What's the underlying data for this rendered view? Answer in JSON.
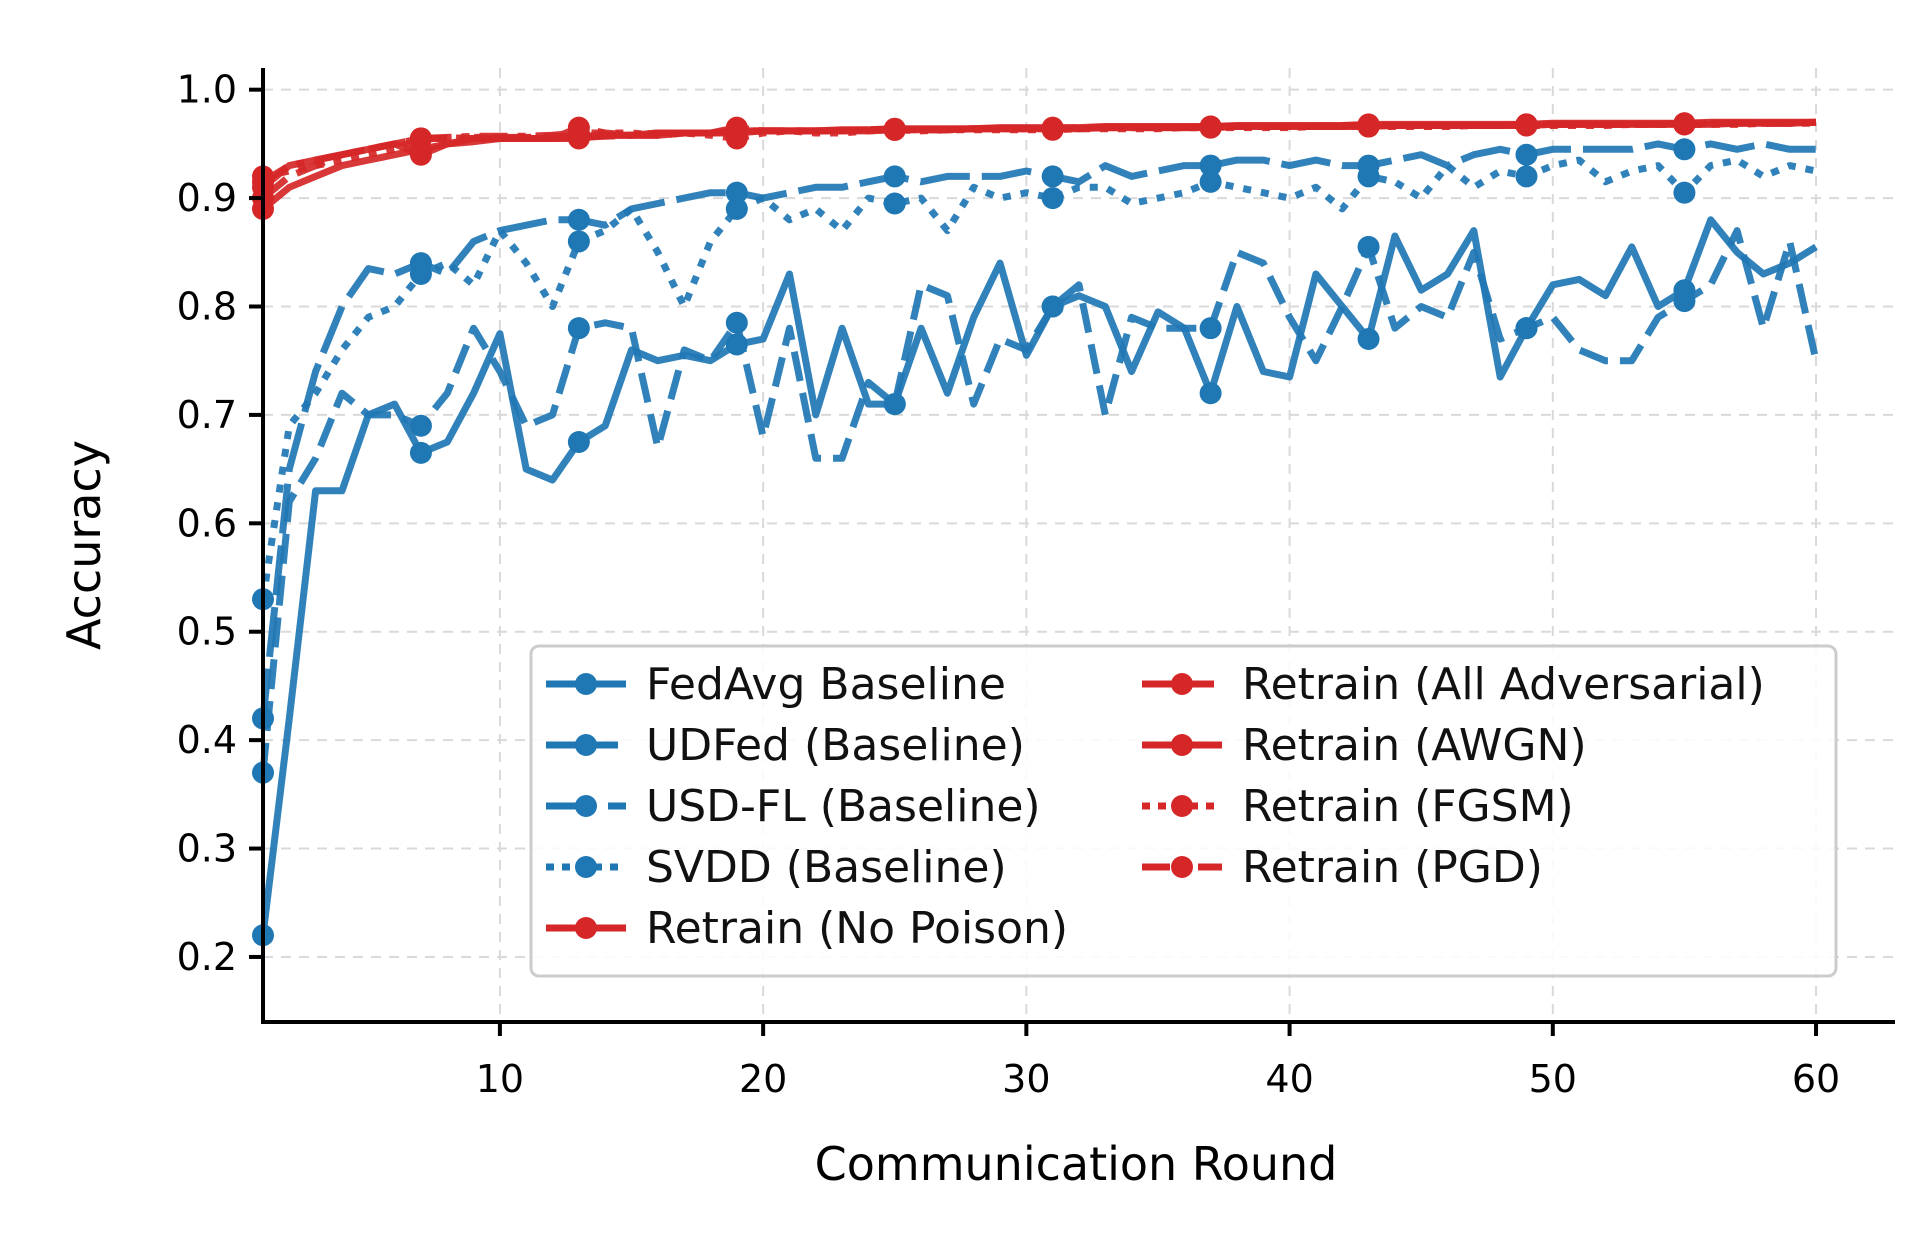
{
  "chart_data": {
    "type": "line",
    "title": "",
    "xlabel": "Communication Round",
    "ylabel": "Accuracy",
    "xlim": [
      1,
      63
    ],
    "ylim": [
      0.14,
      1.02
    ],
    "xticks": [
      10,
      20,
      30,
      40,
      50,
      60
    ],
    "yticks": [
      0.2,
      0.3,
      0.4,
      0.5,
      0.6,
      0.7,
      0.8,
      0.9,
      1.0
    ],
    "xtick_labels": [
      "10",
      "20",
      "30",
      "40",
      "50",
      "60"
    ],
    "ytick_labels": [
      "0.2",
      "0.3",
      "0.4",
      "0.5",
      "0.6",
      "0.7",
      "0.8",
      "0.9",
      "1.0"
    ],
    "grid": true,
    "legend_position": "lower-right",
    "marker_every": 6,
    "series": [
      {
        "name": "FedAvg Baseline",
        "color": "#1f77b4",
        "dash": "solid",
        "values": [
          0.22,
          0.42,
          0.63,
          0.63,
          0.7,
          0.71,
          0.665,
          0.675,
          0.72,
          0.775,
          0.65,
          0.64,
          0.675,
          0.69,
          0.76,
          0.75,
          0.755,
          0.75,
          0.765,
          0.77,
          0.83,
          0.7,
          0.78,
          0.71,
          0.71,
          0.78,
          0.72,
          0.79,
          0.84,
          0.755,
          0.8,
          0.81,
          0.8,
          0.74,
          0.795,
          0.78,
          0.72,
          0.8,
          0.74,
          0.735,
          0.83,
          0.8,
          0.77,
          0.865,
          0.815,
          0.83,
          0.87,
          0.735,
          0.78,
          0.82,
          0.825,
          0.81,
          0.855,
          0.8,
          0.815,
          0.88,
          0.85,
          0.83,
          0.84,
          0.855
        ]
      },
      {
        "name": "UDFed (Baseline)",
        "color": "#1f77b4",
        "dash": "dashed",
        "values": [
          0.37,
          0.62,
          0.66,
          0.72,
          0.7,
          0.7,
          0.69,
          0.72,
          0.78,
          0.74,
          0.69,
          0.7,
          0.78,
          0.785,
          0.78,
          0.67,
          0.76,
          0.75,
          0.785,
          0.68,
          0.78,
          0.66,
          0.66,
          0.73,
          0.71,
          0.82,
          0.81,
          0.71,
          0.77,
          0.76,
          0.8,
          0.82,
          0.7,
          0.79,
          0.78,
          0.78,
          0.78,
          0.85,
          0.84,
          0.79,
          0.75,
          0.8,
          0.855,
          0.78,
          0.8,
          0.79,
          0.85,
          0.77,
          0.78,
          0.79,
          0.76,
          0.75,
          0.75,
          0.79,
          0.805,
          0.82,
          0.87,
          0.78,
          0.86,
          0.75
        ]
      },
      {
        "name": "USD-FL (Baseline)",
        "color": "#1f77b4",
        "dash": "longdash",
        "values": [
          0.42,
          0.65,
          0.74,
          0.8,
          0.835,
          0.83,
          0.84,
          0.83,
          0.86,
          0.87,
          0.875,
          0.88,
          0.88,
          0.875,
          0.89,
          0.895,
          0.9,
          0.905,
          0.905,
          0.9,
          0.905,
          0.91,
          0.91,
          0.915,
          0.92,
          0.915,
          0.92,
          0.92,
          0.92,
          0.925,
          0.92,
          0.915,
          0.93,
          0.92,
          0.925,
          0.93,
          0.93,
          0.935,
          0.935,
          0.93,
          0.935,
          0.93,
          0.93,
          0.935,
          0.94,
          0.93,
          0.94,
          0.945,
          0.94,
          0.945,
          0.945,
          0.945,
          0.945,
          0.95,
          0.945,
          0.95,
          0.945,
          0.95,
          0.945,
          0.945
        ]
      },
      {
        "name": "SVDD (Baseline)",
        "color": "#1f77b4",
        "dash": "dotted",
        "values": [
          0.53,
          0.69,
          0.72,
          0.76,
          0.79,
          0.8,
          0.83,
          0.84,
          0.82,
          0.87,
          0.84,
          0.8,
          0.86,
          0.87,
          0.89,
          0.85,
          0.8,
          0.86,
          0.89,
          0.9,
          0.88,
          0.89,
          0.87,
          0.9,
          0.895,
          0.9,
          0.87,
          0.91,
          0.9,
          0.905,
          0.9,
          0.91,
          0.91,
          0.895,
          0.9,
          0.905,
          0.915,
          0.91,
          0.905,
          0.9,
          0.91,
          0.89,
          0.92,
          0.915,
          0.9,
          0.93,
          0.91,
          0.925,
          0.92,
          0.93,
          0.935,
          0.915,
          0.925,
          0.93,
          0.905,
          0.93,
          0.935,
          0.92,
          0.93,
          0.925
        ]
      },
      {
        "name": "Retrain (No Poison)",
        "color": "#d62728",
        "dash": "solid",
        "values": [
          0.89,
          0.91,
          0.92,
          0.93,
          0.935,
          0.94,
          0.945,
          0.95,
          0.952,
          0.955,
          0.955,
          0.955,
          0.957,
          0.958,
          0.958,
          0.96,
          0.96,
          0.96,
          0.962,
          0.962,
          0.962,
          0.962,
          0.963,
          0.963,
          0.964,
          0.964,
          0.964,
          0.964,
          0.965,
          0.965,
          0.965,
          0.965,
          0.966,
          0.966,
          0.966,
          0.966,
          0.966,
          0.967,
          0.967,
          0.967,
          0.967,
          0.967,
          0.968,
          0.968,
          0.968,
          0.968,
          0.968,
          0.968,
          0.968,
          0.969,
          0.969,
          0.969,
          0.969,
          0.969,
          0.969,
          0.97,
          0.97,
          0.97,
          0.97,
          0.97
        ]
      },
      {
        "name": "Retrain (All Adversarial)",
        "color": "#d62728",
        "dash": "dashed",
        "values": [
          0.9,
          0.92,
          0.93,
          0.94,
          0.945,
          0.95,
          0.955,
          0.955,
          0.955,
          0.956,
          0.956,
          0.957,
          0.956,
          0.957,
          0.958,
          0.958,
          0.96,
          0.96,
          0.962,
          0.962,
          0.962,
          0.962,
          0.962,
          0.963,
          0.963,
          0.963,
          0.963,
          0.964,
          0.964,
          0.964,
          0.964,
          0.965,
          0.965,
          0.965,
          0.965,
          0.965,
          0.966,
          0.966,
          0.966,
          0.966,
          0.966,
          0.967,
          0.967,
          0.967,
          0.967,
          0.967,
          0.967,
          0.967,
          0.968,
          0.968,
          0.968,
          0.968,
          0.968,
          0.968,
          0.968,
          0.969,
          0.969,
          0.969,
          0.969,
          0.97
        ]
      },
      {
        "name": "Retrain (AWGN)",
        "color": "#d62728",
        "dash": "solid",
        "values": [
          0.91,
          0.93,
          0.935,
          0.94,
          0.945,
          0.95,
          0.94,
          0.95,
          0.955,
          0.955,
          0.955,
          0.955,
          0.955,
          0.958,
          0.958,
          0.958,
          0.96,
          0.96,
          0.96,
          0.962,
          0.962,
          0.962,
          0.962,
          0.962,
          0.963,
          0.963,
          0.963,
          0.964,
          0.964,
          0.964,
          0.964,
          0.964,
          0.965,
          0.965,
          0.965,
          0.965,
          0.965,
          0.966,
          0.966,
          0.966,
          0.966,
          0.966,
          0.966,
          0.967,
          0.967,
          0.967,
          0.967,
          0.967,
          0.967,
          0.968,
          0.968,
          0.968,
          0.968,
          0.968,
          0.968,
          0.968,
          0.969,
          0.969,
          0.969,
          0.97
        ]
      },
      {
        "name": "Retrain (FGSM)",
        "color": "#d62728",
        "dash": "dotted",
        "values": [
          0.92,
          0.925,
          0.93,
          0.935,
          0.94,
          0.945,
          0.955,
          0.955,
          0.956,
          0.956,
          0.955,
          0.955,
          0.965,
          0.96,
          0.96,
          0.958,
          0.96,
          0.958,
          0.955,
          0.96,
          0.962,
          0.96,
          0.96,
          0.962,
          0.963,
          0.962,
          0.963,
          0.963,
          0.963,
          0.963,
          0.963,
          0.964,
          0.964,
          0.964,
          0.964,
          0.965,
          0.965,
          0.965,
          0.965,
          0.965,
          0.966,
          0.966,
          0.966,
          0.966,
          0.966,
          0.966,
          0.967,
          0.967,
          0.967,
          0.967,
          0.967,
          0.967,
          0.968,
          0.968,
          0.968,
          0.968,
          0.968,
          0.969,
          0.969,
          0.969
        ]
      },
      {
        "name": "Retrain (PGD)",
        "color": "#d62728",
        "dash": "dashdot",
        "values": [
          0.915,
          0.93,
          0.935,
          0.94,
          0.945,
          0.95,
          0.955,
          0.956,
          0.957,
          0.957,
          0.957,
          0.958,
          0.96,
          0.96,
          0.958,
          0.96,
          0.96,
          0.96,
          0.965,
          0.962,
          0.962,
          0.962,
          0.962,
          0.963,
          0.963,
          0.963,
          0.963,
          0.964,
          0.964,
          0.964,
          0.964,
          0.964,
          0.965,
          0.965,
          0.965,
          0.965,
          0.965,
          0.966,
          0.966,
          0.966,
          0.966,
          0.966,
          0.967,
          0.967,
          0.967,
          0.967,
          0.967,
          0.967,
          0.968,
          0.968,
          0.968,
          0.968,
          0.968,
          0.968,
          0.969,
          0.969,
          0.969,
          0.969,
          0.969,
          0.97
        ]
      }
    ]
  }
}
